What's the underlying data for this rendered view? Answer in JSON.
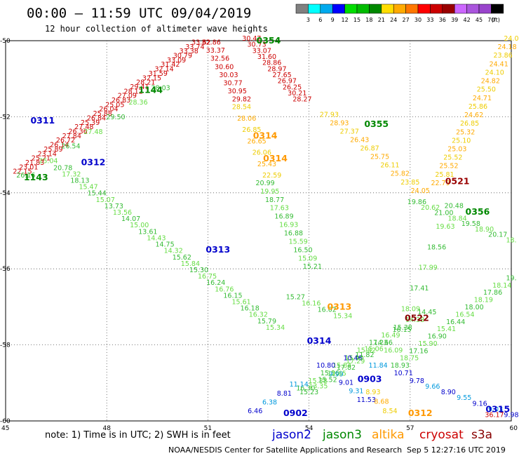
{
  "title": "00:00 – 11:59 UTC 09/04/2019",
  "subtitle": "12 hour collection of altimeter wave heights",
  "note": "note:  1) Time is in UTC;  2) SWH is in feet",
  "credit": "NOAA/NESDIS Center for Satellite Applications and Research",
  "timestamp": "Sep  5 12:27:16 UTC 2019",
  "legend": {
    "values": [
      "3",
      "6",
      "9",
      "12",
      "15",
      "18",
      "21",
      "24",
      "27",
      "30",
      "33",
      "36",
      "39",
      "42",
      "45",
      "70"
    ],
    "unit": "(ft)",
    "colors": [
      "#808080",
      "#00ffff",
      "#00aaee",
      "#0000ff",
      "#00dd00",
      "#00bb00",
      "#008800",
      "#ffdd00",
      "#ffaa00",
      "#ff7700",
      "#ff0000",
      "#cc0000",
      "#990000",
      "#cc66ff",
      "#aa55dd",
      "#9944cc",
      "#000000"
    ]
  },
  "satellites": [
    {
      "name": "jason2",
      "color": "#0000cc"
    },
    {
      "name": "jason3",
      "color": "#008800"
    },
    {
      "name": "altika",
      "color": "#ff9900"
    },
    {
      "name": "cryosat",
      "color": "#cc0000"
    },
    {
      "name": "s3a",
      "color": "#880000"
    }
  ],
  "chart_data": {
    "type": "scatter",
    "xlim": [
      45,
      60
    ],
    "ylim": [
      -60,
      -50
    ],
    "x_ticks": [
      45,
      48,
      51,
      54,
      57,
      60
    ],
    "y_ticks": [
      -50,
      -52,
      -54,
      -56,
      -58,
      -60
    ],
    "grid": true,
    "passes": [
      {
        "id": "0311",
        "sat": "jason2",
        "x": 46.1,
        "y": -52.1
      },
      {
        "id": "0312",
        "sat": "jason2",
        "x": 47.6,
        "y": -53.2
      },
      {
        "id": "0313",
        "sat": "jason2",
        "x": 51.3,
        "y": -55.5
      },
      {
        "id": "0314",
        "sat": "jason2",
        "x": 54.3,
        "y": -57.9
      },
      {
        "id": "0902",
        "sat": "jason2",
        "x": 53.6,
        "y": -59.8
      },
      {
        "id": "0903",
        "sat": "jason2",
        "x": 55.8,
        "y": -58.9
      },
      {
        "id": "0315",
        "sat": "jason2",
        "x": 59.6,
        "y": -59.7
      },
      {
        "id": "0354",
        "sat": "jason3",
        "x": 52.8,
        "y": -50.0
      },
      {
        "id": "1144",
        "sat": "jason3",
        "x": 49.3,
        "y": -51.3
      },
      {
        "id": "1143",
        "sat": "jason3",
        "x": 45.9,
        "y": -53.6
      },
      {
        "id": "0355",
        "sat": "jason3",
        "x": 56.0,
        "y": -52.2
      },
      {
        "id": "0356",
        "sat": "jason3",
        "x": 59.0,
        "y": -54.5
      },
      {
        "id": "0314",
        "sat": "altika",
        "x": 52.7,
        "y": -52.5
      },
      {
        "id": "0314",
        "sat": "altika",
        "x": 53.0,
        "y": -53.1
      },
      {
        "id": "0313",
        "sat": "altika",
        "x": 54.9,
        "y": -57.0
      },
      {
        "id": "0312",
        "sat": "altika",
        "x": 57.3,
        "y": -59.8
      },
      {
        "id": "0521",
        "sat": "cryosat",
        "x": 58.4,
        "y": -53.7
      },
      {
        "id": "0522",
        "sat": "s3a",
        "x": 57.2,
        "y": -57.3
      }
    ],
    "tracks": [
      {
        "sat": "cryosat",
        "x0": 45.5,
        "y0": -53.5,
        "x1": 50.8,
        "y1": -50.1,
        "reverse": true,
        "values": [
          "33.62",
          "33.74",
          "33.38",
          "30.79",
          "33.09",
          "31.42",
          "32.14",
          "31.59",
          "32.15",
          "28.21",
          "29.41",
          "28.12",
          "27.09",
          "26.83",
          "25.05",
          "26.04",
          "25.88",
          "26.84",
          "25.39",
          "27.48",
          "26.36",
          "27.84",
          "26.72",
          "26.14",
          "25.89",
          "23.14",
          "25.21",
          "21.83",
          "23.01",
          "22.15"
        ]
      },
      {
        "sat": "jason3",
        "x0": 45.6,
        "y0": -53.6,
        "x1": 49.6,
        "y1": -51.3,
        "reverse": true,
        "values": [
          "28.03",
          "28.36",
          "29.50",
          "27.48",
          "26.54",
          "25.04",
          "26.16"
        ]
      },
      {
        "sat": "cryosat",
        "x0": 51.1,
        "y0": -50.1,
        "x1": 52.0,
        "y1": -51.6,
        "values": [
          "32.86",
          "33.37",
          "32.56",
          "30.60",
          "30.03",
          "30.77",
          "30.95",
          "29.82"
        ]
      },
      {
        "sat": "altika",
        "x0": 52.0,
        "y0": -51.8,
        "x1": 52.9,
        "y1": -53.6,
        "values": [
          "28.54",
          "28.06",
          "26.85",
          "26.65",
          "26.06",
          "25.43",
          "22.59"
        ]
      },
      {
        "sat": "jason3",
        "x0": 52.7,
        "y0": -53.8,
        "x1": 54.1,
        "y1": -56.0,
        "values": [
          "20.99",
          "19.95",
          "18.77",
          "17.63",
          "16.89",
          "16.93",
          "16.88",
          "15.59",
          "16.50",
          "15.09",
          "15.21"
        ]
      },
      {
        "sat": "cryosat",
        "x0": 52.3,
        "y0": -50.0,
        "x1": 53.8,
        "y1": -51.6,
        "values": [
          "30.47",
          "30.73",
          "33.07",
          "31.60",
          "28.86",
          "28.97",
          "27.65",
          "26.97",
          "26.25",
          "30.21",
          "28.27"
        ]
      },
      {
        "sat": "altika",
        "x0": 54.6,
        "y0": -52.0,
        "x1": 57.3,
        "y1": -54.0,
        "values": [
          "27.93",
          "28.93",
          "27.37",
          "26.43",
          "26.87",
          "25.75",
          "26.11",
          "25.82",
          "23.85",
          "24.05"
        ]
      },
      {
        "sat": "altika",
        "x0": 57.9,
        "y0": -53.8,
        "x1": 60.0,
        "y1": -50.0,
        "reverse": true,
        "values": [
          "24.0",
          "24.18",
          "23.86",
          "24.41",
          "24.10",
          "24.82",
          "25.50",
          "24.71",
          "25.86",
          "24.62",
          "26.85",
          "25.32",
          "25.10",
          "25.03",
          "25.52",
          "25.52",
          "25.81",
          "22.79"
        ]
      },
      {
        "sat": "jason3",
        "x0": 57.2,
        "y0": -54.3,
        "x1": 60.0,
        "y1": -55.3,
        "values": [
          "19.86",
          "20.62",
          "21.00",
          "18.84",
          "19.58",
          "18.90",
          "20.17",
          "18."
        ]
      },
      {
        "sat": "jason3",
        "x0": 56.5,
        "y0": -58.2,
        "x1": 58.3,
        "y1": -54.4,
        "reverse": true,
        "values": [
          "20.48",
          "19.63",
          "18.56",
          "17.99",
          "17.41",
          "18.09",
          "16.15",
          "16.09"
        ]
      },
      {
        "sat": "jason3",
        "x0": 46.7,
        "y0": -53.4,
        "x1": 53.0,
        "y1": -57.6,
        "values": [
          "20.78",
          "17.32",
          "18.13",
          "15.47",
          "15.44",
          "15.07",
          "13.73",
          "13.56",
          "14.07",
          "15.00",
          "13.61",
          "14.43",
          "14.75",
          "14.32",
          "15.62",
          "15.84",
          "15.30",
          "16.75",
          "16.24",
          "16.76",
          "16.15",
          "15.61",
          "16.18",
          "16.32",
          "15.79",
          "15.34"
        ]
      },
      {
        "sat": "jason3",
        "x0": 53.6,
        "y0": -56.8,
        "x1": 55.0,
        "y1": -57.3,
        "values": [
          "15.27",
          "16.16",
          "16.02",
          "15.34"
        ]
      },
      {
        "sat": "jason3",
        "x0": 53.9,
        "y0": -59.2,
        "x1": 57.5,
        "y1": -57.2,
        "reverse": true,
        "values": [
          "14.45",
          "14.38",
          "15.38",
          "16.49",
          "17.23",
          "15.82",
          "15.90",
          "15.84",
          "15.86",
          "15.38",
          "16.30"
        ]
      },
      {
        "sat": "jason3",
        "x0": 56.7,
        "y0": -58.6,
        "x1": 60.0,
        "y1": -56.3,
        "reverse": true,
        "values": [
          "19.",
          "18.14",
          "17.86",
          "18.19",
          "18.00",
          "16.54",
          "16.44",
          "15.41",
          "16.90",
          "15.90",
          "17.16",
          "18.75",
          "18.93"
        ]
      },
      {
        "sat": "jason2",
        "x0": 55.3,
        "y0": -58.4,
        "x1": 56.8,
        "y1": -58.8,
        "values": [
          "10.46",
          "11.84",
          "10.71"
        ]
      },
      {
        "sat": "jason2",
        "x0": 57.2,
        "y0": -59.0,
        "x1": 60.0,
        "y1": -59.9,
        "values": [
          "9.78",
          "9.66",
          "8.90",
          "9.55",
          "9.16",
          "9.03",
          "9.98"
        ]
      },
      {
        "sat": "jason2",
        "x0": 54.5,
        "y0": -58.6,
        "x1": 55.7,
        "y1": -59.5,
        "reverse": true,
        "values": [
          "11.53",
          "9.31",
          "9.01",
          "9.99",
          "10.80"
        ]
      },
      {
        "sat": "jason2",
        "x0": 52.4,
        "y0": -59.8,
        "x1": 53.7,
        "y1": -59.1,
        "values": [
          "6.46",
          "6.38",
          "8.81",
          "11.14"
        ]
      },
      {
        "sat": "altika",
        "x0": 55.9,
        "y0": -59.3,
        "x1": 56.4,
        "y1": -59.8,
        "values": [
          "8.93",
          "8.68",
          "8.54"
        ]
      },
      {
        "sat": "jason3",
        "x0": 54.0,
        "y0": -59.3,
        "x1": 56.2,
        "y1": -58.0,
        "values": [
          "15.23",
          "13.35",
          "15.52",
          "12.65",
          "17.82",
          "17.29",
          "11.82",
          "15.06",
          "14.66"
        ]
      },
      {
        "sat": "cryosat",
        "x0": 59.5,
        "y0": -59.9,
        "x1": 60.0,
        "y1": -59.9,
        "values": [
          "36.17"
        ]
      }
    ]
  }
}
